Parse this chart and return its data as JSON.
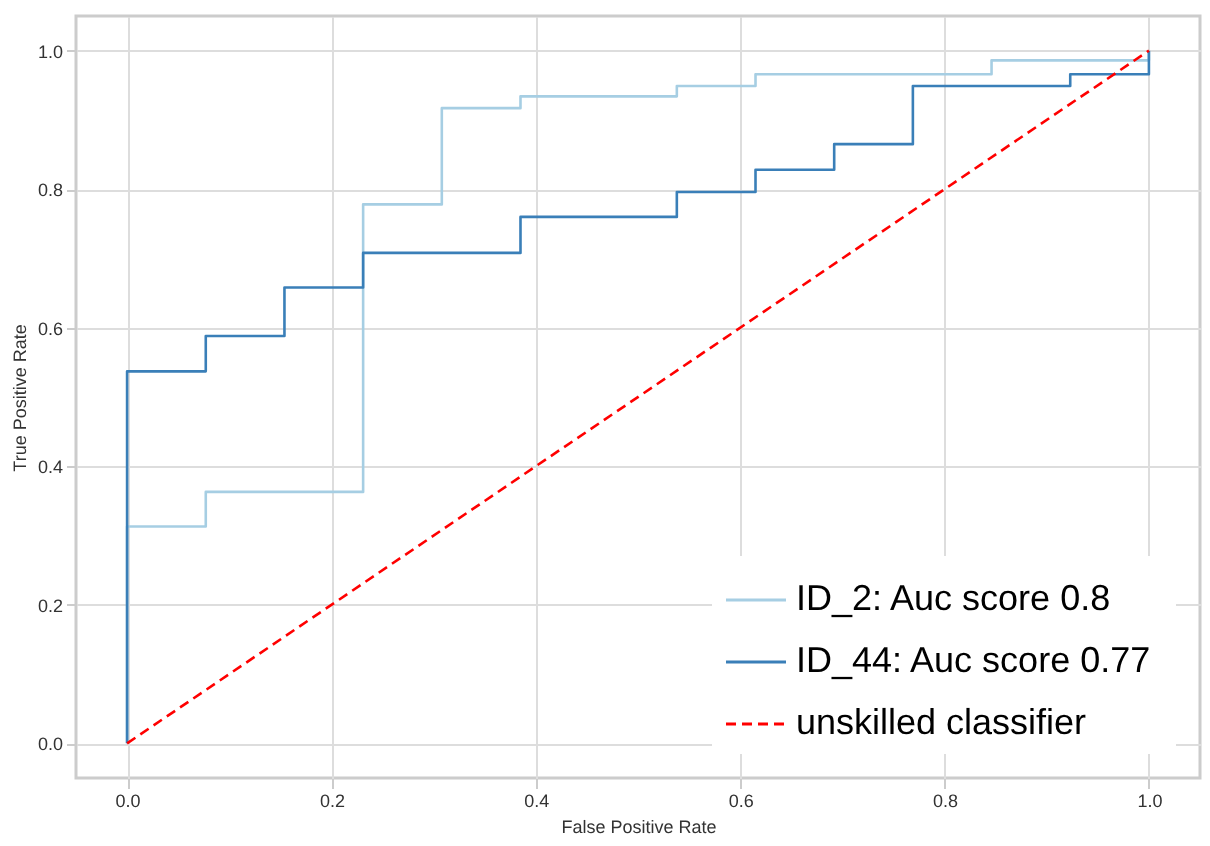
{
  "chart_data": {
    "type": "step",
    "xlabel": "False Positive Rate",
    "ylabel": "True Positive Rate",
    "xlim": [
      -0.05,
      1.05
    ],
    "ylim": [
      -0.05,
      1.05
    ],
    "xticks": [
      {
        "value": 0,
        "label": "0.0"
      },
      0.2,
      0.4,
      0.6,
      0.8,
      {
        "value": 1,
        "label": "1.0"
      }
    ],
    "yticks": [
      {
        "value": 0,
        "label": "0.0"
      },
      0.2,
      0.4,
      0.6,
      0.8,
      {
        "value": 1,
        "label": "1.0"
      }
    ],
    "grid": true,
    "legend": "bottom right",
    "marker": "none",
    "series": [
      {
        "name": "ID_2: Auc score  0.8",
        "color": "#a6cee3",
        "line_style": "solid",
        "x": [
          0,
          0,
          0.077,
          0.231,
          0.308,
          0.385,
          0.538,
          0.615,
          0.846,
          1.0
        ],
        "values": [
          0,
          0.313,
          0.363,
          0.778,
          0.917,
          0.934,
          0.949,
          0.966,
          0.986,
          1.0
        ]
      },
      {
        "name": "ID_44: Auc score  0.77",
        "color": "#3a7fb8",
        "line_style": "solid",
        "x": [
          0,
          0,
          0.077,
          0.154,
          0.231,
          0.385,
          0.538,
          0.615,
          0.692,
          0.769,
          0.923,
          1.0
        ],
        "values": [
          0,
          0.537,
          0.588,
          0.658,
          0.708,
          0.76,
          0.796,
          0.828,
          0.865,
          0.949,
          0.966,
          1.0
        ]
      },
      {
        "name": "unskilled classifier",
        "color": "#ff0000",
        "type": "line",
        "line_style": "dashed",
        "x": [
          0,
          1
        ],
        "values": [
          0,
          1
        ]
      }
    ]
  }
}
